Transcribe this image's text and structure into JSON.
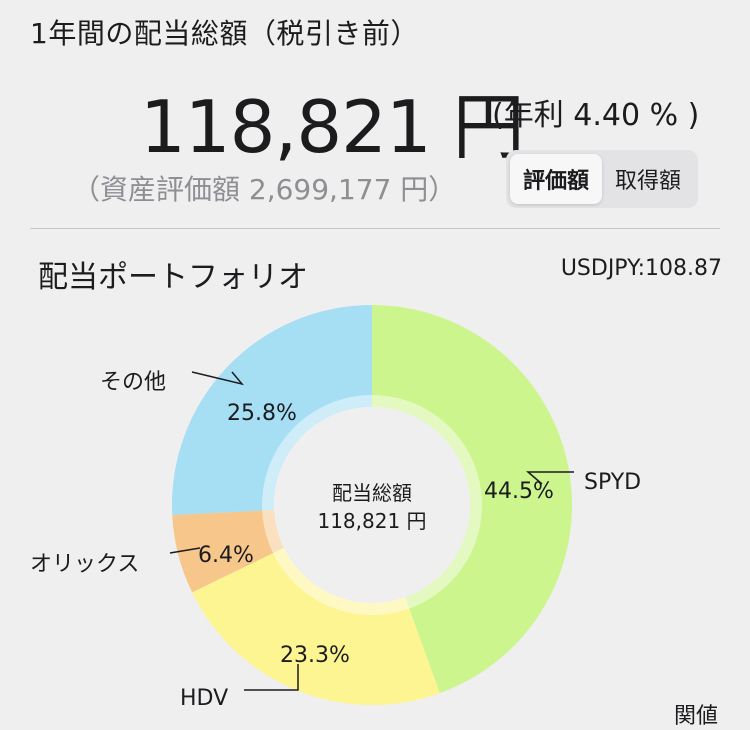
{
  "header": {
    "title": "1年間の配当総額（税引き前）",
    "total_amount": "118,821 円",
    "yield": "(年利 4.40 % )",
    "asset_value": "（資産評価額 2,699,177 円）"
  },
  "toggle": {
    "options": [
      "評価額",
      "取得額"
    ],
    "selected": "評価額"
  },
  "section": {
    "title": "配当ポートフォリオ",
    "fx_rate": "USDJPY:108.87"
  },
  "chart_data": {
    "type": "pie",
    "style": "donut",
    "center_label": "配当総額",
    "center_value": "118,821 円",
    "categories": [
      "SPYD",
      "HDV",
      "オリックス",
      "その他"
    ],
    "values": [
      44.5,
      23.3,
      6.4,
      25.8
    ],
    "value_labels": [
      "44.5%",
      "23.3%",
      "6.4%",
      "25.8%"
    ],
    "colors": [
      "#ccf58e",
      "#fdf592",
      "#f7c68a",
      "#a6def4"
    ]
  },
  "footer": {
    "partial_text": "関値"
  }
}
